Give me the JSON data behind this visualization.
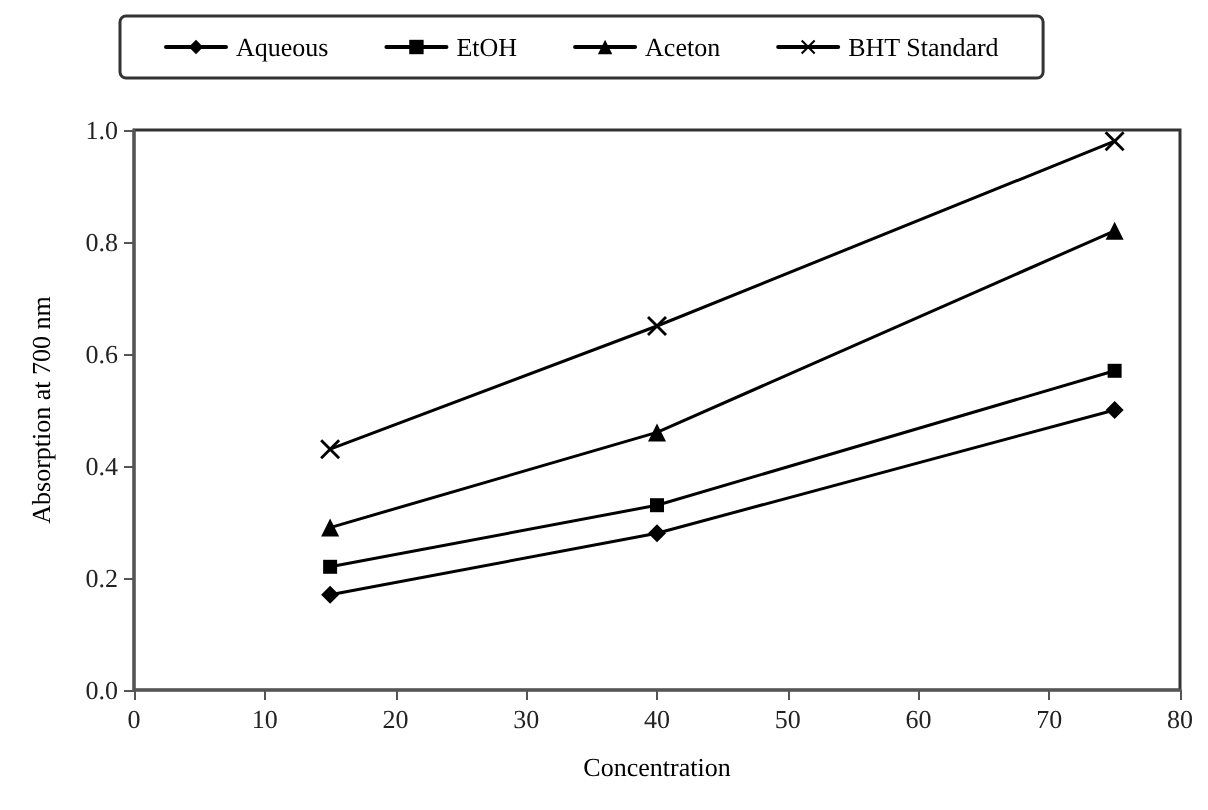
{
  "chart_data": {
    "type": "line",
    "xlabel": "Concentration",
    "ylabel": "Absorption at 700 nm",
    "x": [
      15,
      40,
      75
    ],
    "series": [
      {
        "name": "Aqueous",
        "color": "#000000",
        "marker": "diamond",
        "values": [
          0.17,
          0.28,
          0.5
        ]
      },
      {
        "name": "EtOH",
        "color": "#000000",
        "marker": "square",
        "values": [
          0.22,
          0.33,
          0.57
        ]
      },
      {
        "name": "Aceton",
        "color": "#000000",
        "marker": "triangle",
        "values": [
          0.29,
          0.46,
          0.82
        ]
      },
      {
        "name": "BHT Standard",
        "color": "#000000",
        "marker": "cross",
        "values": [
          0.43,
          0.65,
          0.98
        ]
      }
    ],
    "xlim": [
      0,
      80
    ],
    "xticks": [
      0,
      10,
      20,
      30,
      40,
      50,
      60,
      70,
      80
    ],
    "ylim": [
      0,
      1
    ],
    "yticks": [
      {
        "value": 0,
        "label": "0.0"
      },
      {
        "value": 0.2,
        "label": "0.2"
      },
      {
        "value": 0.4,
        "label": "0.4"
      },
      {
        "value": 0.6,
        "label": "0.6"
      },
      {
        "value": 0.8,
        "label": "0.8"
      },
      {
        "value": 1,
        "label": "1.0"
      }
    ],
    "grid": false,
    "legend": "top",
    "line_style": "solid"
  }
}
